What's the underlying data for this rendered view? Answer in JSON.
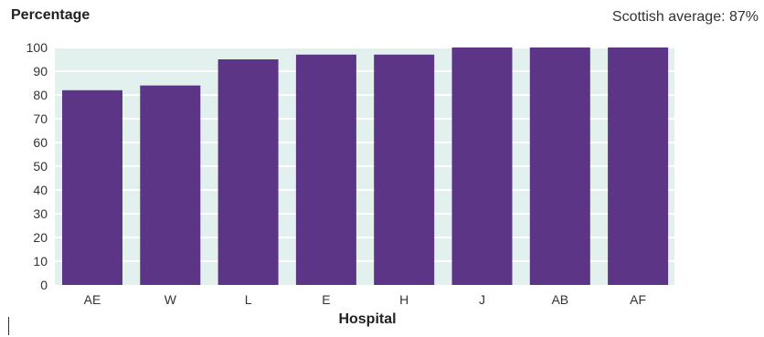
{
  "chart_data": {
    "type": "bar",
    "ylabel": "Percentage",
    "xlabel": "Hospital",
    "annotation": "Scottish average: 87%",
    "categories": [
      "AE",
      "W",
      "L",
      "E",
      "H",
      "J",
      "AB",
      "AF"
    ],
    "values": [
      82,
      84,
      95,
      97,
      97,
      100,
      100,
      100
    ],
    "ylim": [
      0,
      100
    ],
    "yticks": [
      0,
      10,
      20,
      30,
      40,
      50,
      60,
      70,
      80,
      90,
      100
    ],
    "grid": true,
    "colors": {
      "bar": "#5c3587",
      "plot_background": "#e2f0ee",
      "gridline": "#ffffff"
    }
  }
}
